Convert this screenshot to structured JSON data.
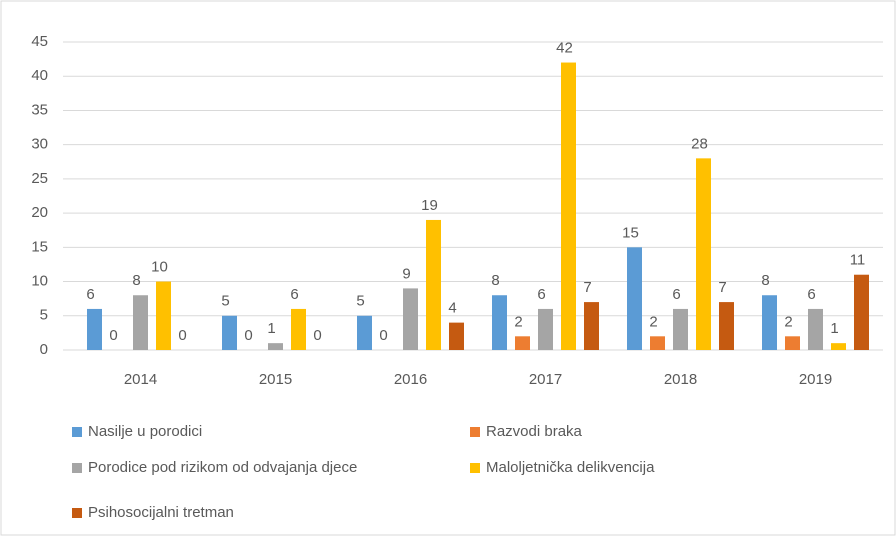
{
  "chart_data": {
    "type": "bar",
    "categories": [
      "2014",
      "2015",
      "2016",
      "2017",
      "2018",
      "2019"
    ],
    "series": [
      {
        "name": "Nasilje u porodici",
        "color": "#5b9bd5",
        "values": [
          6,
          5,
          5,
          8,
          15,
          8
        ]
      },
      {
        "name": "Razvodi braka",
        "color": "#ed7d31",
        "values": [
          0,
          0,
          0,
          2,
          2,
          2
        ]
      },
      {
        "name": "Porodice pod rizikom od odvajanja djece",
        "color": "#a5a5a5",
        "values": [
          8,
          1,
          9,
          6,
          6,
          6
        ]
      },
      {
        "name": "Maloljetnička delikvencija",
        "color": "#ffc000",
        "values": [
          10,
          6,
          19,
          42,
          28,
          1
        ]
      },
      {
        "name": "Psihosocijalni tretman",
        "color": "#c55a11",
        "values": [
          0,
          0,
          4,
          7,
          7,
          11
        ]
      }
    ],
    "ylim": [
      0,
      45
    ],
    "yticks": [
      0,
      5,
      10,
      15,
      20,
      25,
      30,
      35,
      40,
      45
    ],
    "grid": true,
    "data_labels": true
  }
}
